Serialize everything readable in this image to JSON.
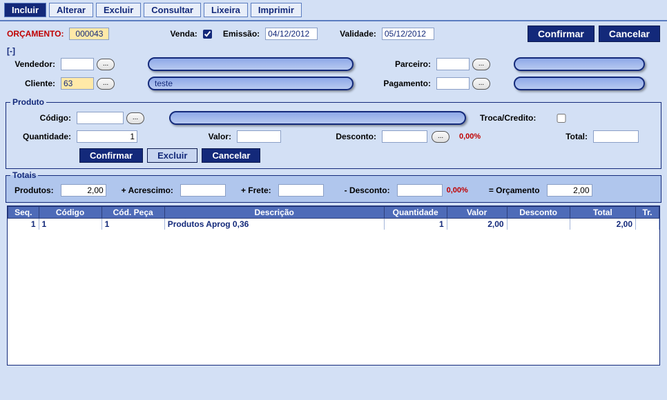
{
  "toolbar": {
    "tabs": [
      {
        "label": "Incluir",
        "active": true
      },
      {
        "label": "Alterar",
        "active": false
      },
      {
        "label": "Excluir",
        "active": false
      },
      {
        "label": "Consultar",
        "active": false
      },
      {
        "label": "Lixeira",
        "active": false
      },
      {
        "label": "Imprimir",
        "active": false
      }
    ]
  },
  "topActions": {
    "confirm": "Confirmar",
    "cancel": "Cancelar"
  },
  "header": {
    "orcamentoLabel": "ORÇAMENTO:",
    "orcamentoValue": "000043",
    "vendaLabel": "Venda:",
    "vendaChecked": true,
    "emissaoLabel": "Emissão:",
    "emissaoValue": "04/12/2012",
    "validadeLabel": "Validade:",
    "validadeValue": "05/12/2012"
  },
  "collapse": "[-]",
  "party": {
    "vendedorLabel": "Vendedor:",
    "vendedorCode": "",
    "clienteLabel": "Cliente:",
    "clienteCode": "63",
    "clienteName": "teste",
    "parceiroLabel": "Parceiro:",
    "parceiroCode": "",
    "pagamentoLabel": "Pagamento:",
    "pagamentoCode": ""
  },
  "productGroup": {
    "legend": "Produto",
    "codigoLabel": "Código:",
    "codigoValue": "",
    "trocaLabel": "Troca/Credito:",
    "trocaChecked": false,
    "quantidadeLabel": "Quantidade:",
    "quantidadeValue": "1",
    "valorLabel": "Valor:",
    "valorValue": "",
    "descontoLabel": "Desconto:",
    "descontoValue": "",
    "descontoPct": "0,00%",
    "totalLabel": "Total:",
    "totalValue": "",
    "btnConfirm": "Confirmar",
    "btnDelete": "Excluir",
    "btnCancel": "Cancelar"
  },
  "totais": {
    "legend": "Totais",
    "produtosLabel": "Produtos:",
    "produtosValue": "2,00",
    "acrescimoLabel": "+ Acrescimo:",
    "acrescimoValue": "",
    "freteLabel": "+ Frete:",
    "freteValue": "",
    "descontoLabel": "- Desconto:",
    "descontoValue": "",
    "descontoPct": "0,00%",
    "orcamentoLabel": "= Orçamento",
    "orcamentoValue": "2,00"
  },
  "table": {
    "columns": [
      "Seq.",
      "Código",
      "Cód. Peça",
      "Descrição",
      "Quantidade",
      "Valor",
      "Desconto",
      "Total",
      "Tr."
    ],
    "widths": [
      42,
      86,
      86,
      300,
      86,
      82,
      86,
      90,
      32
    ],
    "rows": [
      {
        "seq": "1",
        "codigo": "1",
        "codpeca": "1",
        "descricao": "Produtos Aprog 0,36",
        "quantidade": "1",
        "valor": "2,00",
        "desconto": "",
        "total": "2,00",
        "tr": ""
      }
    ]
  }
}
